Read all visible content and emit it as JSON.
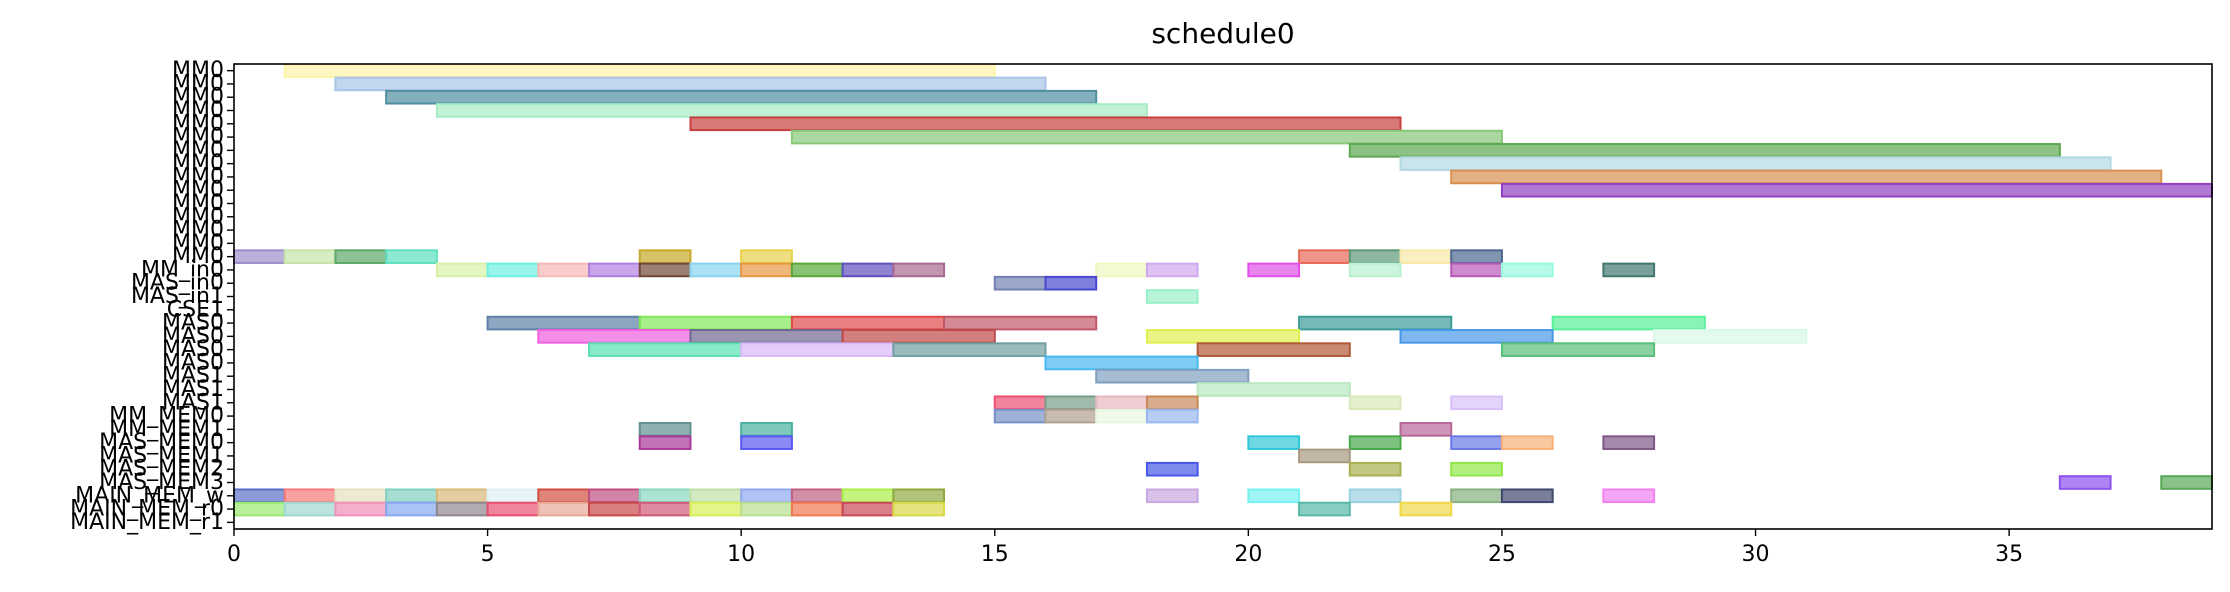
{
  "chart_data": {
    "type": "gantt",
    "title": "schedule0",
    "xlim": [
      0,
      39
    ],
    "x_ticks": [
      0,
      5,
      10,
      15,
      20,
      25,
      30,
      35
    ],
    "y_labels": [
      "MM0",
      "MM0",
      "MM0",
      "MM0",
      "MM0",
      "MM0",
      "MM0",
      "MM0",
      "MM0",
      "MM0",
      "MM0",
      "MM0",
      "MM0",
      "MM0",
      "MM0",
      "MM_in0",
      "MAS_in0",
      "MAS_in1",
      "CSE1",
      "MAS0",
      "MAS0",
      "MAS0",
      "MAS0",
      "MAS1",
      "MAS1",
      "MAS1",
      "MM_MEM0",
      "MM_MEM1",
      "MAS_MEM0",
      "MAS_MEM1",
      "MAS_MEM2",
      "MAS_MEM3",
      "MAIN_MEM_w",
      "MAIN_MEM_r0",
      "MAIN_MEM_r1"
    ],
    "rows": [
      [
        [
          1,
          15,
          "#fff3a8"
        ]
      ],
      [
        [
          2,
          16,
          "#a8c4e6"
        ]
      ],
      [
        [
          3,
          17,
          "#4f8fa0"
        ]
      ],
      [
        [
          4,
          18,
          "#a8ecc4"
        ]
      ],
      [
        [
          9,
          23,
          "#c84040"
        ]
      ],
      [
        [
          11,
          25,
          "#88c878"
        ]
      ],
      [
        [
          22,
          36,
          "#5ca850"
        ]
      ],
      [
        [
          23,
          37,
          "#b4d8e2"
        ]
      ],
      [
        [
          24,
          38,
          "#d89050"
        ]
      ],
      [
        [
          25,
          39,
          "#9040c0"
        ]
      ],
      [],
      [],
      [],
      [],
      [
        [
          0,
          1,
          "#9c8ecc"
        ],
        [
          1,
          2,
          "#c4e4a8"
        ],
        [
          2,
          3,
          "#5ca868"
        ],
        [
          3,
          4,
          "#5ee0c0"
        ],
        [
          8,
          9,
          "#c8a828"
        ],
        [
          10,
          11,
          "#e8d048"
        ],
        [
          21,
          22,
          "#e86858"
        ],
        [
          22,
          23,
          "#5c9878"
        ],
        [
          23,
          24,
          "#f8e8a8"
        ],
        [
          24,
          25,
          "#4c6890"
        ]
      ],
      [
        [
          4,
          5,
          "#d8f0a8"
        ],
        [
          5,
          6,
          "#6ef0e0"
        ],
        [
          6,
          7,
          "#f8b8b8"
        ],
        [
          7,
          8,
          "#b080e0"
        ],
        [
          8,
          9,
          "#704838"
        ],
        [
          9,
          10,
          "#88d4f0"
        ],
        [
          10,
          11,
          "#e89840"
        ],
        [
          11,
          12,
          "#58a838"
        ],
        [
          12,
          13,
          "#6050c0"
        ],
        [
          13,
          14,
          "#a86890"
        ],
        [
          17,
          18,
          "#f0f8c0"
        ],
        [
          18,
          19,
          "#d0a8f0"
        ],
        [
          20,
          21,
          "#e050e8"
        ],
        [
          22,
          23,
          "#b8f0d0"
        ],
        [
          24,
          25,
          "#b858b8"
        ],
        [
          25,
          26,
          "#98f8e0"
        ],
        [
          27,
          28,
          "#407870"
        ]
      ],
      [
        [
          15,
          16,
          "#7080b0"
        ],
        [
          16,
          17,
          "#4848d0"
        ]
      ],
      [
        [
          18,
          19,
          "#98f0c8"
        ]
      ],
      [],
      [
        [
          5,
          8,
          "#6080a8"
        ],
        [
          8,
          11,
          "#80e858"
        ],
        [
          11,
          14,
          "#e04848"
        ],
        [
          14,
          17,
          "#c05868"
        ],
        [
          21,
          24,
          "#3c9c98"
        ],
        [
          26,
          29,
          "#58f098"
        ]
      ],
      [
        [
          6,
          9,
          "#f060e0"
        ],
        [
          9,
          12,
          "#706890"
        ],
        [
          12,
          15,
          "#c04848"
        ],
        [
          18,
          21,
          "#e0f050"
        ],
        [
          23,
          26,
          "#4898e8"
        ],
        [
          28,
          31,
          "#d8f8e8"
        ]
      ],
      [
        [
          7,
          10,
          "#58e0b0"
        ],
        [
          10,
          13,
          "#d8b8f8"
        ],
        [
          13,
          16,
          "#70a0a0"
        ],
        [
          19,
          22,
          "#b05838"
        ],
        [
          25,
          28,
          "#58c078"
        ]
      ],
      [
        [
          16,
          19,
          "#48b8f0"
        ]
      ],
      [
        [
          17,
          20,
          "#80a0c0"
        ]
      ],
      [
        [
          19,
          22,
          "#b8e8c0"
        ]
      ],
      [
        [
          15,
          16,
          "#f05070"
        ],
        [
          16,
          17,
          "#789c88"
        ],
        [
          17,
          18,
          "#e8b8c0"
        ],
        [
          18,
          19,
          "#c88858"
        ],
        [
          22,
          23,
          "#d8e8b8"
        ],
        [
          24,
          25,
          "#d8c0f8"
        ]
      ],
      [
        [
          15,
          16,
          "#7890c8"
        ],
        [
          16,
          17,
          "#b0a090"
        ],
        [
          17,
          18,
          "#e8f8e0"
        ],
        [
          18,
          19,
          "#98b8f0"
        ]
      ],
      [
        [
          8,
          9,
          "#609090"
        ],
        [
          10,
          11,
          "#48b0a0"
        ],
        [
          23,
          24,
          "#b86898"
        ]
      ],
      [
        [
          8,
          9,
          "#a83898"
        ],
        [
          10,
          11,
          "#5858f0"
        ],
        [
          20,
          21,
          "#30c8d8"
        ],
        [
          22,
          23,
          "#48a848"
        ],
        [
          24,
          25,
          "#6878e8"
        ],
        [
          25,
          26,
          "#f8b078"
        ],
        [
          27,
          28,
          "#805888"
        ]
      ],
      [
        [
          21,
          22,
          "#a89880"
        ]
      ],
      [
        [
          18,
          19,
          "#4858e8"
        ],
        [
          22,
          23,
          "#a8b050"
        ],
        [
          24,
          25,
          "#90e848"
        ]
      ],
      [
        [
          36,
          37,
          "#8c50f0"
        ],
        [
          38,
          39,
          "#58a858"
        ]
      ],
      [
        [
          0,
          1,
          "#5870c8"
        ],
        [
          1,
          2,
          "#f87878"
        ],
        [
          2,
          3,
          "#e8e0c0"
        ],
        [
          3,
          4,
          "#80d0c0"
        ],
        [
          4,
          5,
          "#d8b878"
        ],
        [
          5,
          6,
          "#e0f0f8"
        ],
        [
          6,
          7,
          "#d05040"
        ],
        [
          7,
          8,
          "#c05080"
        ],
        [
          8,
          9,
          "#88d8c0"
        ],
        [
          9,
          10,
          "#c0e0a8"
        ],
        [
          10,
          11,
          "#90a8f0"
        ],
        [
          11,
          12,
          "#c06080"
        ],
        [
          12,
          13,
          "#a8f048"
        ],
        [
          13,
          14,
          "#90a840"
        ],
        [
          18,
          19,
          "#c8a8e0"
        ],
        [
          20,
          21,
          "#78f0f0"
        ],
        [
          22,
          23,
          "#98d0e0"
        ],
        [
          24,
          25,
          "#88b080"
        ],
        [
          25,
          26,
          "#404870"
        ],
        [
          27,
          28,
          "#f080f0"
        ]
      ],
      [
        [
          0,
          1,
          "#98e870"
        ],
        [
          1,
          2,
          "#a0d8d0"
        ],
        [
          2,
          3,
          "#f090b8"
        ],
        [
          3,
          4,
          "#88a8f0"
        ],
        [
          4,
          5,
          "#908890"
        ],
        [
          5,
          6,
          "#e85070"
        ],
        [
          6,
          7,
          "#e8a898"
        ],
        [
          7,
          8,
          "#c84848"
        ],
        [
          8,
          9,
          "#d05878"
        ],
        [
          9,
          10,
          "#d8f058"
        ],
        [
          10,
          11,
          "#b8e090"
        ],
        [
          11,
          12,
          "#f07850"
        ],
        [
          12,
          13,
          "#c84858"
        ],
        [
          13,
          14,
          "#d8d848"
        ],
        [
          21,
          22,
          "#58b8a8"
        ],
        [
          23,
          24,
          "#f0d848"
        ]
      ]
    ]
  }
}
